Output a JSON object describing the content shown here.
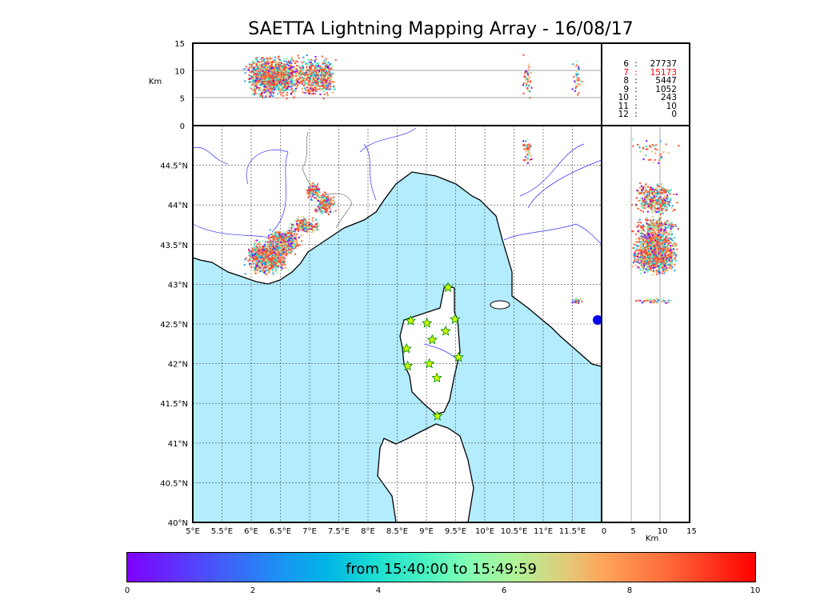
{
  "chart_data": {
    "type": "scatter",
    "title": "SAETTA Lightning Mapping Array - 16/08/17",
    "map": {
      "lon_range": [
        5,
        12
      ],
      "lat_range": [
        40,
        45
      ],
      "lon_ticks": [
        "5°E",
        "5.5°E",
        "6°E",
        "6.5°E",
        "7°E",
        "7.5°E",
        "8°E",
        "8.5°E",
        "9°E",
        "9.5°E",
        "10°E",
        "10.5°E",
        "11°E",
        "11.5°E"
      ],
      "lat_ticks": [
        "40°N",
        "40.5°N",
        "41°N",
        "41.5°N",
        "42°N",
        "42.5°N",
        "43°N",
        "43.5°N",
        "44°N",
        "44.5°N"
      ],
      "grid": true
    },
    "alt_panel": {
      "ylabel": "Km",
      "yticks": [
        "0",
        "5",
        "10",
        "15"
      ],
      "range": [
        0,
        15
      ]
    },
    "side_panel": {
      "xlabel": "Km",
      "xticks": [
        "0",
        "5",
        "10",
        "15"
      ],
      "range": [
        0,
        15
      ]
    },
    "stations": [
      [
        9.37,
        42.96
      ],
      [
        8.73,
        42.54
      ],
      [
        9.01,
        42.51
      ],
      [
        9.49,
        42.56
      ],
      [
        9.33,
        42.41
      ],
      [
        9.1,
        42.3
      ],
      [
        8.66,
        42.19
      ],
      [
        9.55,
        42.08
      ],
      [
        9.05,
        42.0
      ],
      [
        8.68,
        41.97
      ],
      [
        9.18,
        41.82
      ],
      [
        9.19,
        41.34
      ]
    ],
    "clusters": [
      {
        "lon": 6.25,
        "lat": 43.35,
        "spread": [
          0.22,
          0.12
        ],
        "n": 900
      },
      {
        "lon": 6.55,
        "lat": 43.55,
        "spread": [
          0.18,
          0.1
        ],
        "n": 500
      },
      {
        "lon": 6.9,
        "lat": 43.75,
        "spread": [
          0.15,
          0.06
        ],
        "n": 200
      },
      {
        "lon": 7.25,
        "lat": 44.03,
        "spread": [
          0.1,
          0.08
        ],
        "n": 250
      },
      {
        "lon": 7.05,
        "lat": 44.18,
        "spread": [
          0.08,
          0.06
        ],
        "n": 150
      },
      {
        "lon": 10.72,
        "lat": 44.72,
        "spread": [
          0.05,
          0.12
        ],
        "n": 40
      },
      {
        "lon": 11.56,
        "lat": 42.8,
        "spread": [
          0.05,
          0.02
        ],
        "n": 40
      }
    ],
    "colorbar": {
      "label": "from 15:40:00 to 15:49:59",
      "ticks": [
        "0",
        "2",
        "4",
        "6",
        "8",
        "10"
      ],
      "range": [
        0,
        10
      ]
    },
    "stats": [
      {
        "k": "6",
        "v": "27737",
        "color": "#000000"
      },
      {
        "k": "7",
        "v": "15173",
        "color": "#ff0000"
      },
      {
        "k": "8",
        "v": "5447",
        "color": "#000000"
      },
      {
        "k": "9",
        "v": "1052",
        "color": "#000000"
      },
      {
        "k": "10",
        "v": "243",
        "color": "#000000"
      },
      {
        "k": "11",
        "v": "10",
        "color": "#000000"
      },
      {
        "k": "12",
        "v": "0",
        "color": "#000000"
      }
    ],
    "colors": {
      "sea": "#b3ecfd",
      "rivers": "#3333ff",
      "stars": "#ccff00"
    }
  }
}
